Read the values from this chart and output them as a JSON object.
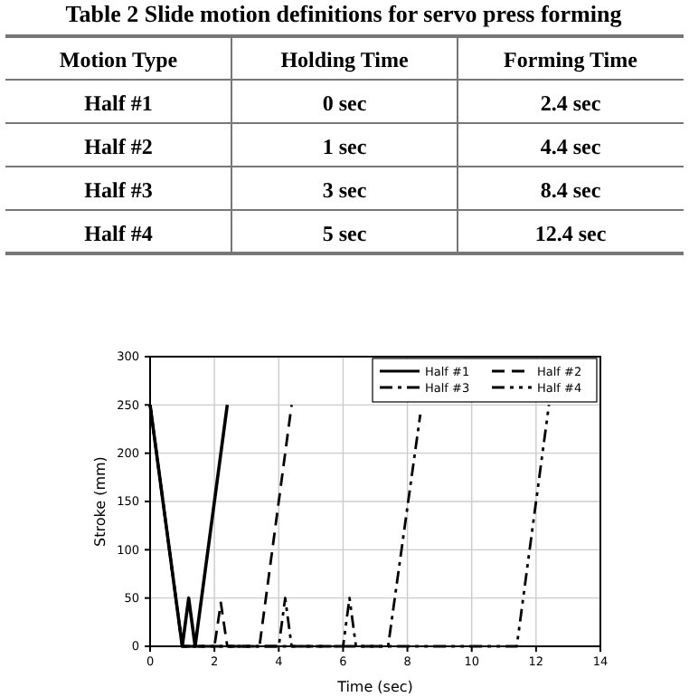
{
  "chart_data": [
    {
      "type": "heatmap",
      "title": "Table 2 Slide motion definitions for servo press forming",
      "ylabel": "Motion Type",
      "categories": [
        "Holding Time",
        "Forming Time"
      ],
      "y_categories": [
        "Half #1",
        "Half #2",
        "Half #3",
        "Half #4"
      ],
      "cells": [
        [
          0,
          2.4
        ],
        [
          1,
          4.4
        ],
        [
          3,
          8.4
        ],
        [
          5,
          12.4
        ]
      ],
      "cell_labels": [
        [
          "0 sec",
          "2.4 sec"
        ],
        [
          "1 sec",
          "4.4 sec"
        ],
        [
          "3 sec",
          "8.4 sec"
        ],
        [
          "5 sec",
          "12.4 sec"
        ]
      ]
    },
    {
      "type": "line",
      "xlabel": "Time (sec)",
      "ylabel": "Stroke (mm)",
      "xlim": [
        0,
        14
      ],
      "xticks": [
        0,
        2,
        4,
        6,
        8,
        10,
        12,
        14
      ],
      "ylim": [
        0,
        300
      ],
      "yticks": [
        0,
        50,
        100,
        150,
        200,
        250,
        300
      ],
      "grid": true,
      "legend": "top right",
      "series": [
        {
          "name": "Half #1",
          "color": "#000000",
          "line_style": "solid",
          "x": [
            0,
            1,
            1.2,
            1.4,
            2.4
          ],
          "values": [
            250,
            0,
            50,
            0,
            250
          ]
        },
        {
          "name": "Half #2",
          "color": "#000000",
          "line_style": "dashed",
          "x": [
            0,
            1,
            2,
            2.2,
            2.4,
            3.4,
            4.4
          ],
          "values": [
            250,
            0,
            0,
            45,
            0,
            0,
            250
          ]
        },
        {
          "name": "Half #3",
          "color": "#000000",
          "line_style": "dashdot",
          "x": [
            0,
            1,
            4,
            4.2,
            4.4,
            7.4,
            8.4
          ],
          "values": [
            250,
            0,
            0,
            50,
            0,
            0,
            240
          ]
        },
        {
          "name": "Half #4",
          "color": "#000000",
          "line_style": "dashdotdot",
          "x": [
            0,
            1,
            6,
            6.2,
            6.4,
            11.4,
            12.4
          ],
          "values": [
            250,
            0,
            0,
            50,
            0,
            0,
            250
          ]
        }
      ]
    }
  ]
}
